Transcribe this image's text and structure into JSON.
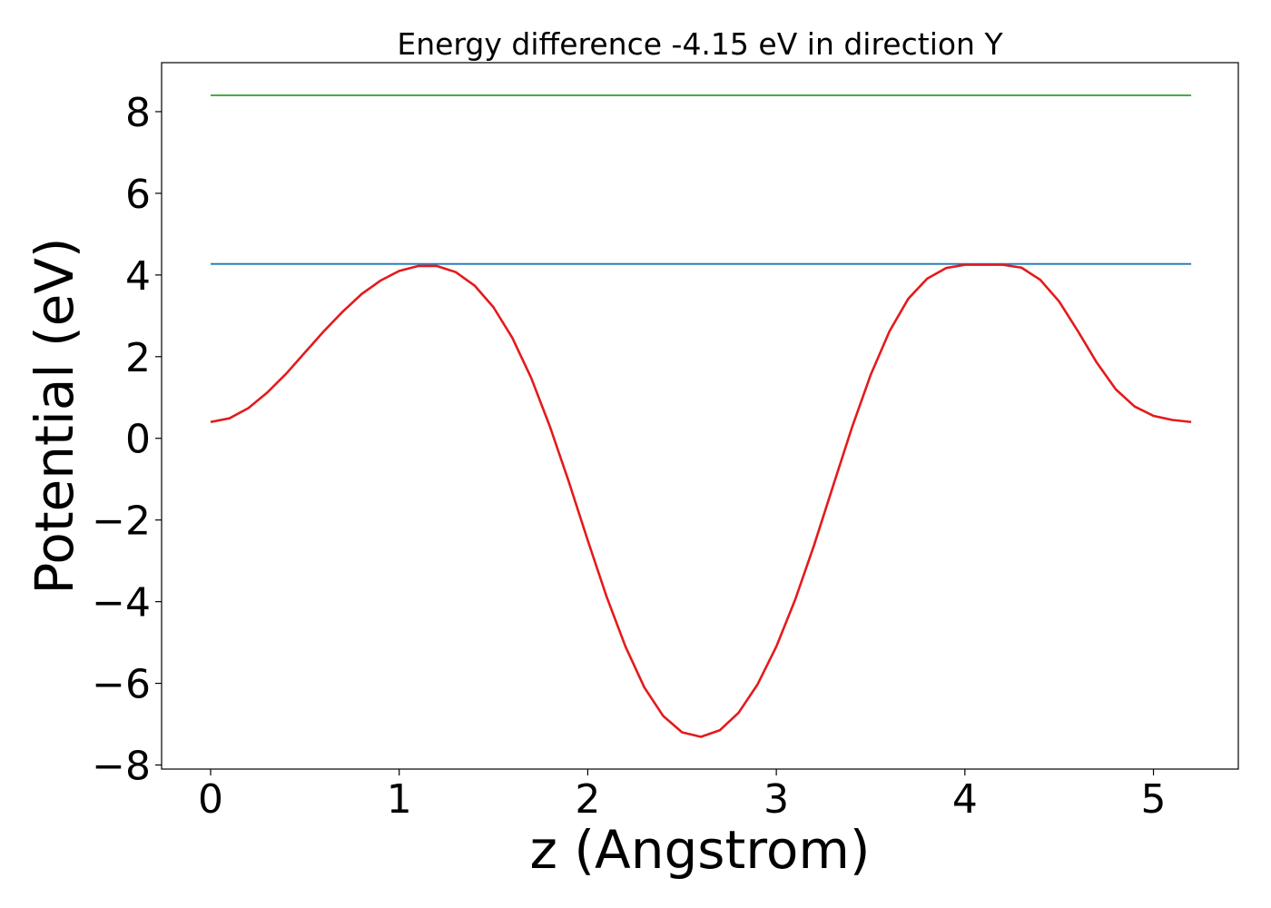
{
  "chart_data": {
    "type": "line",
    "title": "Energy difference -4.15 eV in direction Y",
    "xlabel": "z (Angstrom)",
    "ylabel": "Potential (eV)",
    "xlim": [
      -0.26,
      5.45
    ],
    "ylim": [
      -8.1,
      9.2
    ],
    "xticks": [
      0,
      1,
      2,
      3,
      4,
      5
    ],
    "yticks": [
      -8,
      -6,
      -4,
      -2,
      0,
      2,
      4,
      6,
      8
    ],
    "grid": false,
    "series": [
      {
        "color": "#2ca02c",
        "x": [
          0,
          5.2
        ],
        "y": [
          8.4,
          8.4
        ]
      },
      {
        "color": "#1f77b4",
        "x": [
          0,
          5.2
        ],
        "y": [
          4.27,
          4.27
        ]
      },
      {
        "color": "#e41a1c",
        "x": [
          0,
          0.1,
          0.2,
          0.3,
          0.4,
          0.5,
          0.6,
          0.7,
          0.8,
          0.9,
          1.0,
          1.1,
          1.2,
          1.3,
          1.4,
          1.5,
          1.6,
          1.7,
          1.8,
          1.9,
          2.0,
          2.1,
          2.2,
          2.3,
          2.4,
          2.5,
          2.6,
          2.7,
          2.8,
          2.9,
          3.0,
          3.1,
          3.2,
          3.3,
          3.4,
          3.5,
          3.6,
          3.7,
          3.8,
          3.9,
          4.0,
          4.1,
          4.2,
          4.3,
          4.4,
          4.5,
          4.6,
          4.7,
          4.8,
          4.9,
          5.0,
          5.1,
          5.2
        ],
        "y": [
          0.4,
          0.49,
          0.74,
          1.12,
          1.58,
          2.1,
          2.62,
          3.1,
          3.53,
          3.86,
          4.1,
          4.22,
          4.22,
          4.07,
          3.74,
          3.21,
          2.46,
          1.48,
          0.28,
          -1.07,
          -2.5,
          -3.88,
          -5.1,
          -6.1,
          -6.8,
          -7.2,
          -7.31,
          -7.15,
          -6.72,
          -6.03,
          -5.1,
          -3.95,
          -2.62,
          -1.18,
          0.25,
          1.55,
          2.62,
          3.42,
          3.91,
          4.17,
          4.25,
          4.25,
          4.25,
          4.18,
          3.88,
          3.35,
          2.62,
          1.85,
          1.2,
          0.78,
          0.55,
          0.45,
          0.4
        ]
      }
    ]
  }
}
